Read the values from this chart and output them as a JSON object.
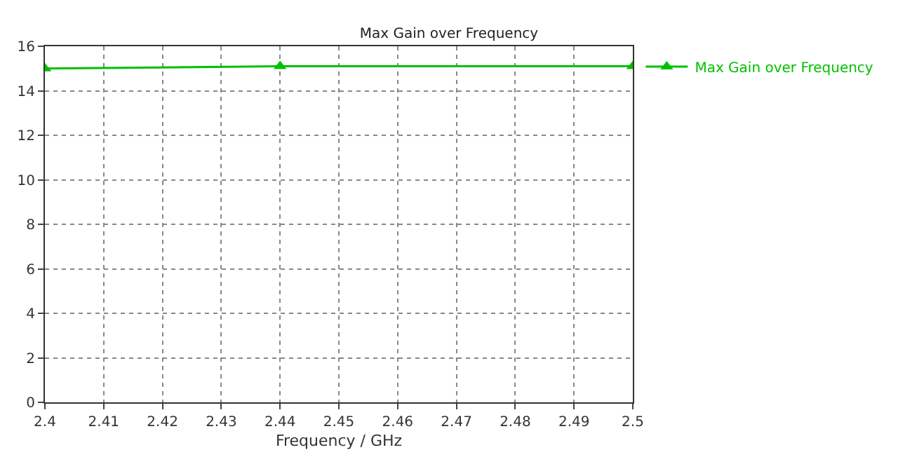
{
  "chart_data": {
    "type": "line",
    "title": "Max Gain over Frequency",
    "xlabel": "Frequency / GHz",
    "x": [
      2.4,
      2.44,
      2.5
    ],
    "series": [
      {
        "name": "Max Gain over Frequency",
        "color": "#00c000",
        "values": [
          15.0,
          15.1,
          15.1
        ]
      }
    ],
    "xlim": [
      2.4,
      2.5
    ],
    "xticks": [
      2.4,
      2.41,
      2.42,
      2.43,
      2.44,
      2.45,
      2.46,
      2.47,
      2.48,
      2.49,
      2.5
    ],
    "ylim": [
      0,
      16
    ],
    "yticks": [
      0,
      2,
      4,
      6,
      8,
      10,
      12,
      14,
      16
    ],
    "grid": true,
    "legend": "top right",
    "marker": "triangle",
    "line_style": "solid"
  }
}
